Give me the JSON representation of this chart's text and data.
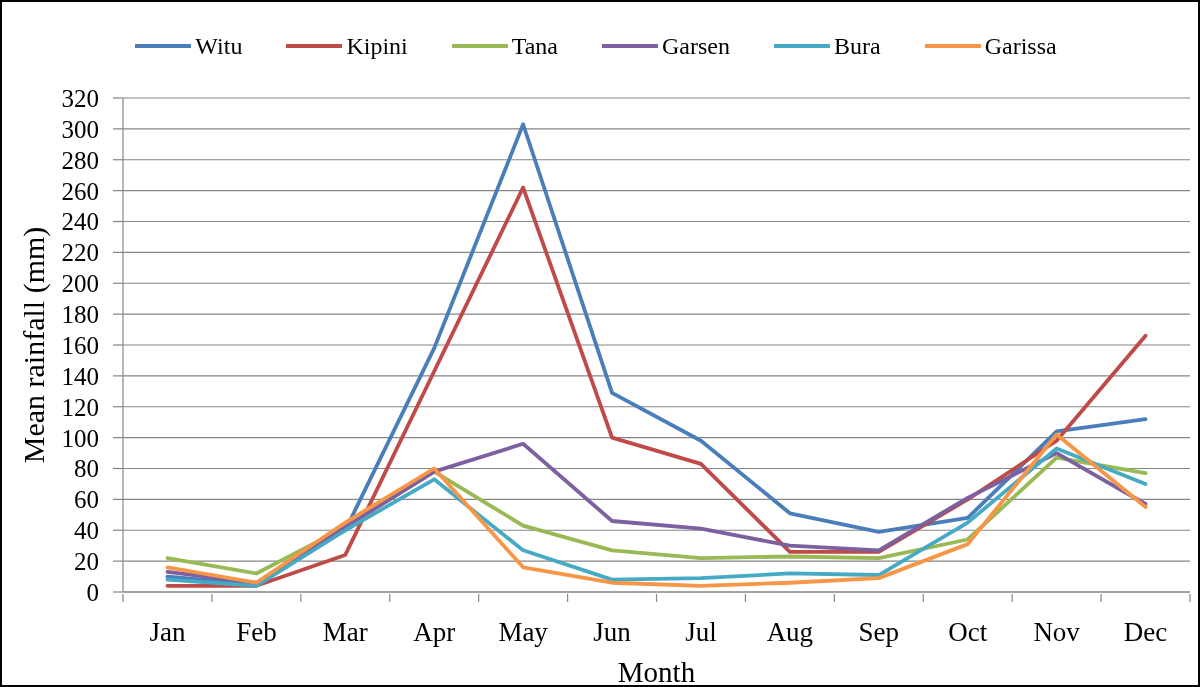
{
  "chart_data": {
    "type": "line",
    "xlabel": "Month",
    "ylabel": "Mean rainfall (mm)",
    "categories": [
      "Jan",
      "Feb",
      "Mar",
      "Apr",
      "May",
      "Jun",
      "Jul",
      "Aug",
      "Sep",
      "Oct",
      "Nov",
      "Dec"
    ],
    "series": [
      {
        "name": "Witu",
        "color": "#4a7ebb",
        "values": [
          10,
          5,
          40,
          158,
          303,
          129,
          98,
          51,
          39,
          48,
          104,
          112
        ]
      },
      {
        "name": "Kipini",
        "color": "#be4b48",
        "values": [
          4,
          4,
          24,
          143,
          262,
          100,
          83,
          26,
          26,
          60,
          98,
          166
        ]
      },
      {
        "name": "Tana",
        "color": "#98b954",
        "values": [
          22,
          12,
          42,
          78,
          43,
          27,
          22,
          23,
          22,
          34,
          87,
          77
        ]
      },
      {
        "name": "Garsen",
        "color": "#7d60a0",
        "values": [
          13,
          6,
          42,
          78,
          96,
          46,
          41,
          30,
          27,
          61,
          90,
          57
        ]
      },
      {
        "name": "Bura",
        "color": "#46aac5",
        "values": [
          8,
          4,
          40,
          73,
          27,
          8,
          9,
          12,
          11,
          45,
          93,
          70
        ]
      },
      {
        "name": "Garissa",
        "color": "#f79646",
        "values": [
          16,
          6,
          45,
          80,
          16,
          6,
          4,
          6,
          9,
          31,
          102,
          55
        ]
      }
    ],
    "ylim": [
      0,
      320
    ],
    "yticks": [
      0,
      20,
      40,
      60,
      80,
      100,
      120,
      140,
      160,
      180,
      200,
      220,
      240,
      260,
      280,
      300,
      320
    ],
    "grid": "y",
    "legend": "top",
    "marker": "none",
    "line_style": "solid"
  }
}
